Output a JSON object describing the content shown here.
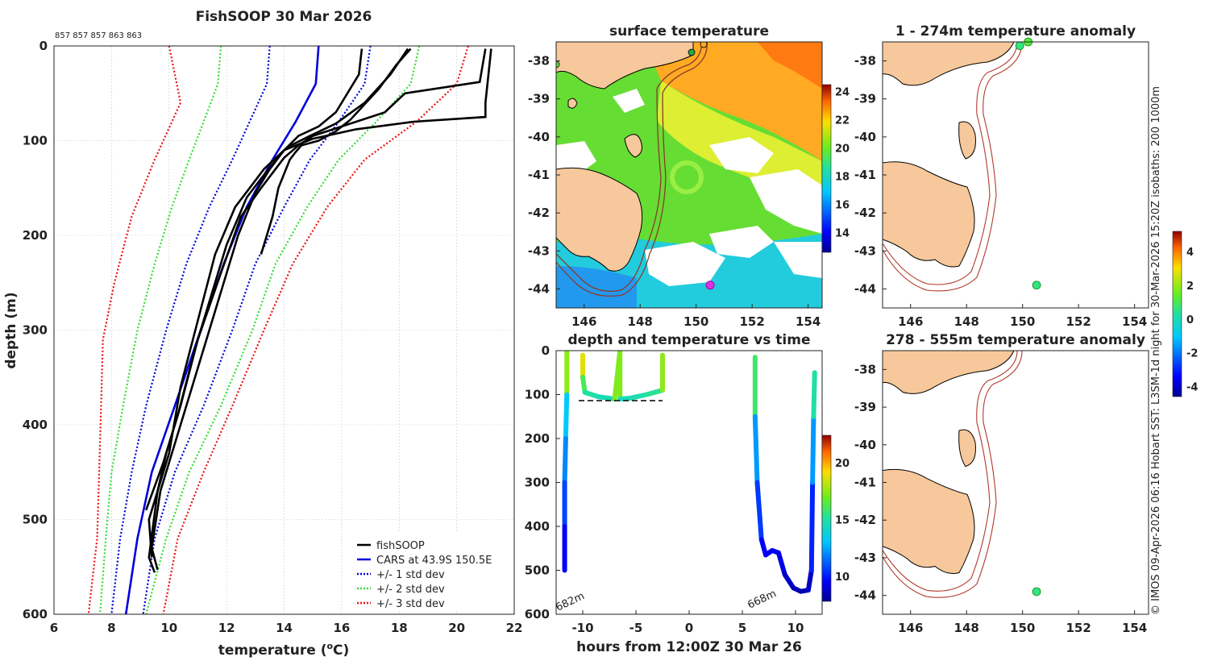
{
  "chart_data": [
    {
      "type": "line",
      "title": "FishSOOP 30 Mar 2026",
      "subtitle": "857 857 857 863 863",
      "xlabel": "temperature (°C)",
      "xlabel_main": "temperature (",
      "xlabel_deg": "o",
      "xlabel_tail": "C)",
      "ylabel": "depth (m)",
      "xlim": [
        6,
        22
      ],
      "ylim": [
        600,
        0
      ],
      "xticks": [
        6,
        8,
        10,
        12,
        14,
        16,
        18,
        20,
        22
      ],
      "yticks": [
        0,
        100,
        200,
        300,
        400,
        500,
        600
      ],
      "legend_position": "bottom-right",
      "legend": [
        {
          "label": "fishSOOP",
          "color": "#000000",
          "style": "solid"
        },
        {
          "label": "CARS at 43.9S 150.5E",
          "color": "#0000dd",
          "style": "solid"
        },
        {
          "label": "+/- 1 std dev",
          "color": "#0000dd",
          "style": "dotted"
        },
        {
          "label": "+/- 2 std dev",
          "color": "#33dd33",
          "style": "dotted"
        },
        {
          "label": "+/- 3 std dev",
          "color": "#ee1111",
          "style": "dotted"
        }
      ],
      "series": [
        {
          "name": "CARS mean",
          "color": "#0000dd",
          "style": "solid",
          "points": [
            [
              15.2,
              0
            ],
            [
              15.1,
              40
            ],
            [
              14.4,
              80
            ],
            [
              13.6,
              120
            ],
            [
              12.7,
              170
            ],
            [
              11.9,
              230
            ],
            [
              11.1,
              300
            ],
            [
              10.2,
              380
            ],
            [
              9.4,
              450
            ],
            [
              8.9,
              520
            ],
            [
              8.5,
              600
            ]
          ]
        },
        {
          "name": "CARS -1 sd",
          "color": "#0000dd",
          "style": "dotted",
          "points": [
            [
              13.5,
              0
            ],
            [
              13.4,
              40
            ],
            [
              12.8,
              80
            ],
            [
              12.2,
              120
            ],
            [
              11.4,
              170
            ],
            [
              10.6,
              230
            ],
            [
              9.9,
              300
            ],
            [
              9.2,
              380
            ],
            [
              8.7,
              450
            ],
            [
              8.3,
              520
            ],
            [
              8.0,
              600
            ]
          ]
        },
        {
          "name": "CARS +1 sd",
          "color": "#0000dd",
          "style": "dotted",
          "points": [
            [
              17.0,
              0
            ],
            [
              16.8,
              40
            ],
            [
              15.9,
              80
            ],
            [
              14.9,
              120
            ],
            [
              14.0,
              170
            ],
            [
              13.0,
              230
            ],
            [
              12.2,
              300
            ],
            [
              11.2,
              380
            ],
            [
              10.2,
              450
            ],
            [
              9.5,
              520
            ],
            [
              9.1,
              600
            ]
          ]
        },
        {
          "name": "CARS -2 sd",
          "color": "#33dd33",
          "style": "dotted",
          "points": [
            [
              11.8,
              0
            ],
            [
              11.7,
              40
            ],
            [
              11.2,
              80
            ],
            [
              10.7,
              120
            ],
            [
              10.1,
              170
            ],
            [
              9.5,
              230
            ],
            [
              8.9,
              300
            ],
            [
              8.4,
              380
            ],
            [
              8.0,
              450
            ],
            [
              7.8,
              520
            ],
            [
              7.6,
              600
            ]
          ]
        },
        {
          "name": "CARS +2 sd",
          "color": "#33dd33",
          "style": "dotted",
          "points": [
            [
              18.7,
              0
            ],
            [
              18.4,
              40
            ],
            [
              17.2,
              80
            ],
            [
              15.9,
              120
            ],
            [
              14.8,
              170
            ],
            [
              13.7,
              230
            ],
            [
              12.9,
              300
            ],
            [
              11.8,
              380
            ],
            [
              10.7,
              450
            ],
            [
              9.9,
              520
            ],
            [
              9.2,
              600
            ]
          ]
        },
        {
          "name": "CARS -3 sd",
          "color": "#ee1111",
          "style": "dotted",
          "points": [
            [
              10.0,
              0
            ],
            [
              10.4,
              60
            ],
            [
              9.5,
              120
            ],
            [
              8.7,
              180
            ],
            [
              8.1,
              250
            ],
            [
              7.7,
              310
            ],
            [
              7.6,
              420
            ],
            [
              7.5,
              520
            ],
            [
              7.2,
              600
            ]
          ]
        },
        {
          "name": "CARS +3 sd",
          "color": "#ee1111",
          "style": "dotted",
          "points": [
            [
              20.4,
              0
            ],
            [
              20.0,
              40
            ],
            [
              18.6,
              80
            ],
            [
              16.8,
              120
            ],
            [
              15.5,
              170
            ],
            [
              14.3,
              230
            ],
            [
              13.3,
              300
            ],
            [
              12.2,
              380
            ],
            [
              11.2,
              450
            ],
            [
              10.3,
              520
            ],
            [
              9.8,
              600
            ]
          ]
        },
        {
          "name": "fishSOOP 1",
          "color": "#000000",
          "style": "solid",
          "points": [
            [
              21.2,
              3
            ],
            [
              21.0,
              60
            ],
            [
              21.0,
              75
            ],
            [
              18.5,
              80
            ],
            [
              16.5,
              88
            ],
            [
              15.0,
              98
            ],
            [
              14.5,
              104
            ],
            [
              14.0,
              110
            ],
            [
              13.3,
              130
            ],
            [
              12.8,
              150
            ],
            [
              12.3,
              170
            ],
            [
              11.6,
              220
            ],
            [
              11.0,
              290
            ],
            [
              10.4,
              360
            ],
            [
              10.0,
              430
            ],
            [
              9.6,
              470
            ],
            [
              9.3,
              540
            ],
            [
              9.5,
              556
            ]
          ]
        },
        {
          "name": "fishSOOP 2",
          "color": "#000000",
          "style": "solid",
          "points": [
            [
              21.0,
              3
            ],
            [
              20.8,
              38
            ],
            [
              18.2,
              50
            ],
            [
              17.5,
              70
            ],
            [
              16.0,
              85
            ],
            [
              15.0,
              95
            ],
            [
              14.5,
              105
            ],
            [
              14.0,
              118
            ],
            [
              13.2,
              150
            ],
            [
              12.5,
              180
            ],
            [
              11.8,
              240
            ],
            [
              11.0,
              310
            ],
            [
              10.4,
              380
            ],
            [
              9.9,
              430
            ],
            [
              9.6,
              470
            ],
            [
              9.3,
              500
            ],
            [
              9.4,
              540
            ]
          ]
        },
        {
          "name": "fishSOOP 3",
          "color": "#000000",
          "style": "solid",
          "points": [
            [
              18.4,
              3
            ],
            [
              17.9,
              20
            ],
            [
              17.3,
              45
            ],
            [
              16.3,
              78
            ],
            [
              15.8,
              90
            ],
            [
              15.2,
              100
            ],
            [
              14.6,
              105
            ],
            [
              14.4,
              112
            ],
            [
              14.2,
              120
            ],
            [
              13.8,
              150
            ],
            [
              13.6,
              180
            ],
            [
              13.2,
              220
            ]
          ]
        },
        {
          "name": "fishSOOP 4",
          "color": "#000000",
          "style": "solid",
          "points": [
            [
              16.7,
              3
            ],
            [
              16.6,
              30
            ],
            [
              15.8,
              70
            ],
            [
              15.2,
              85
            ],
            [
              14.5,
              95
            ],
            [
              14.0,
              110
            ],
            [
              13.5,
              130
            ],
            [
              13.0,
              155
            ],
            [
              12.4,
              200
            ],
            [
              11.8,
              260
            ],
            [
              11.2,
              320
            ],
            [
              10.6,
              380
            ],
            [
              10.1,
              430
            ],
            [
              9.7,
              470
            ],
            [
              9.4,
              530
            ],
            [
              9.6,
              553
            ]
          ]
        },
        {
          "name": "fishSOOP 5",
          "color": "#000000",
          "style": "solid",
          "points": [
            [
              18.3,
              3
            ],
            [
              17.7,
              30
            ],
            [
              16.8,
              60
            ],
            [
              15.8,
              82
            ],
            [
              14.9,
              95
            ],
            [
              14.3,
              104
            ],
            [
              14.0,
              110
            ],
            [
              13.2,
              140
            ],
            [
              12.7,
              160
            ],
            [
              12.0,
              210
            ],
            [
              11.5,
              260
            ],
            [
              10.9,
              320
            ],
            [
              10.3,
              390
            ],
            [
              9.8,
              440
            ],
            [
              9.2,
              490
            ]
          ]
        }
      ]
    },
    {
      "type": "heatmap",
      "title": "surface temperature",
      "xlim": [
        145,
        154.5
      ],
      "ylim": [
        -44.5,
        -37.5
      ],
      "xticks": [
        146,
        148,
        150,
        152,
        154
      ],
      "yticks": [
        -38,
        -39,
        -40,
        -41,
        -42,
        -43,
        -44
      ],
      "colorbar": {
        "ticks": [
          14,
          16,
          18,
          20,
          22,
          24
        ],
        "range": [
          12.6,
          24.5
        ]
      },
      "markers": [
        {
          "lon": 150.5,
          "lat": -43.9,
          "color": "#dd33dd"
        }
      ]
    },
    {
      "type": "scatter",
      "title": "depth and temperature vs time",
      "xlabel": "hours from 12:00Z 30 Mar 26",
      "xlim": [
        -12.5,
        12.5
      ],
      "ylim": [
        600,
        0
      ],
      "xticks": [
        -10,
        -5,
        0,
        5,
        10
      ],
      "yticks": [
        0,
        100,
        200,
        300,
        400,
        500,
        600
      ],
      "colorbar": {
        "ticks": [
          10,
          15,
          20
        ],
        "range": [
          7.8,
          22.4
        ]
      },
      "annotations": [
        "682m",
        "668m"
      ],
      "series": [
        {
          "name": "drop 1",
          "points": [
            [
              -11.5,
              0
            ],
            [
              -11.5,
              100
            ],
            [
              -11.6,
              200
            ],
            [
              -11.7,
              300
            ],
            [
              -11.7,
              400
            ],
            [
              -11.7,
              500
            ]
          ]
        },
        {
          "name": "surface run",
          "points": [
            [
              -10.0,
              10
            ],
            [
              -10.0,
              60
            ],
            [
              -9.8,
              95
            ],
            [
              -8.5,
              105
            ],
            [
              -7.0,
              110
            ],
            [
              -6.5,
              0
            ],
            [
              -6.5,
              110
            ],
            [
              -5.5,
              108
            ],
            [
              -4.0,
              100
            ],
            [
              -2.5,
              90
            ],
            [
              -2.5,
              10
            ]
          ]
        },
        {
          "name": "drop 2",
          "points": [
            [
              6.2,
              15
            ],
            [
              6.2,
              150
            ],
            [
              6.4,
              300
            ],
            [
              6.8,
              430
            ],
            [
              7.2,
              465
            ],
            [
              7.8,
              455
            ],
            [
              8.4,
              460
            ],
            [
              9.0,
              510
            ],
            [
              9.8,
              540
            ],
            [
              10.5,
              548
            ],
            [
              11.2,
              545
            ],
            [
              11.5,
              500
            ],
            [
              11.6,
              300
            ],
            [
              11.7,
              150
            ],
            [
              11.8,
              50
            ]
          ]
        }
      ]
    },
    {
      "type": "scatter",
      "title": "1 - 274m temperature anomaly",
      "xlim": [
        145,
        154.5
      ],
      "ylim": [
        -44.5,
        -37.5
      ],
      "xticks": [
        146,
        148,
        150,
        152,
        154
      ],
      "yticks": [
        -38,
        -39,
        -40,
        -41,
        -42,
        -43,
        -44
      ],
      "points": [
        {
          "lon": 150.5,
          "lat": -43.9,
          "anomaly": 0.6
        },
        {
          "lon": 149.9,
          "lat": -37.6,
          "anomaly": 0.6
        },
        {
          "lon": 150.2,
          "lat": -37.5,
          "anomaly": 1.2
        }
      ]
    },
    {
      "type": "scatter",
      "title": "278 - 555m temperature anomaly",
      "xlim": [
        145,
        154.5
      ],
      "ylim": [
        -44.5,
        -37.5
      ],
      "xticks": [
        146,
        148,
        150,
        152,
        154
      ],
      "yticks": [
        -38,
        -39,
        -40,
        -41,
        -42,
        -43,
        -44
      ],
      "points": [
        {
          "lon": 150.5,
          "lat": -43.9,
          "anomaly": 0.6
        }
      ]
    },
    {
      "type": "colorbar",
      "title": "anomaly colorbar",
      "ticks": [
        4,
        2,
        0,
        -2,
        -4
      ],
      "range": [
        -4.6,
        5.2
      ]
    }
  ],
  "side_note": "© IMOS 09-Apr-2026 06:16 Hobart SST: L3SM-1d night for 30-Mar-2026 15:20Z isobaths: 200  1000m"
}
